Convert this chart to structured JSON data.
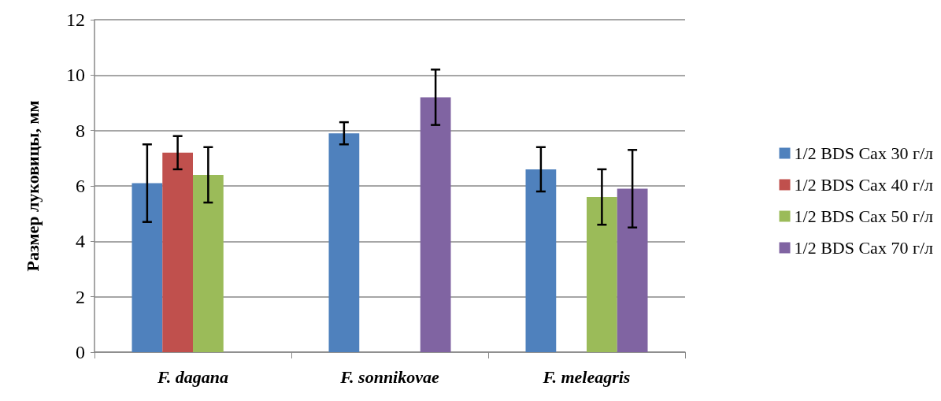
{
  "chart_data": {
    "type": "bar",
    "ylabel": "Размер луковицы, мм",
    "categories": [
      "F. dagana",
      "F. sonnikovae",
      "F. meleagris"
    ],
    "series": [
      {
        "name": "1/2 BDS Сах 30 г/л",
        "color": "#4f81bd",
        "values": [
          6.1,
          7.9,
          6.6
        ],
        "errors": [
          1.4,
          0.4,
          0.8
        ]
      },
      {
        "name": "1/2 BDS Сах 40 г/л",
        "color": "#c0504d",
        "values": [
          7.2,
          null,
          null
        ],
        "errors": [
          0.6,
          null,
          null
        ]
      },
      {
        "name": "1/2 BDS Сах 50 г/л",
        "color": "#9bbb59",
        "values": [
          6.4,
          null,
          5.6
        ],
        "errors": [
          1.0,
          null,
          1.0
        ]
      },
      {
        "name": "1/2 BDS Сах 70 г/л",
        "color": "#8064a2",
        "values": [
          null,
          9.2,
          5.9
        ],
        "errors": [
          null,
          1.0,
          1.4
        ]
      }
    ],
    "ylim": [
      0,
      12
    ],
    "yticks": [
      0,
      2,
      4,
      6,
      8,
      10,
      12
    ],
    "grid": "y",
    "legend": "right"
  }
}
